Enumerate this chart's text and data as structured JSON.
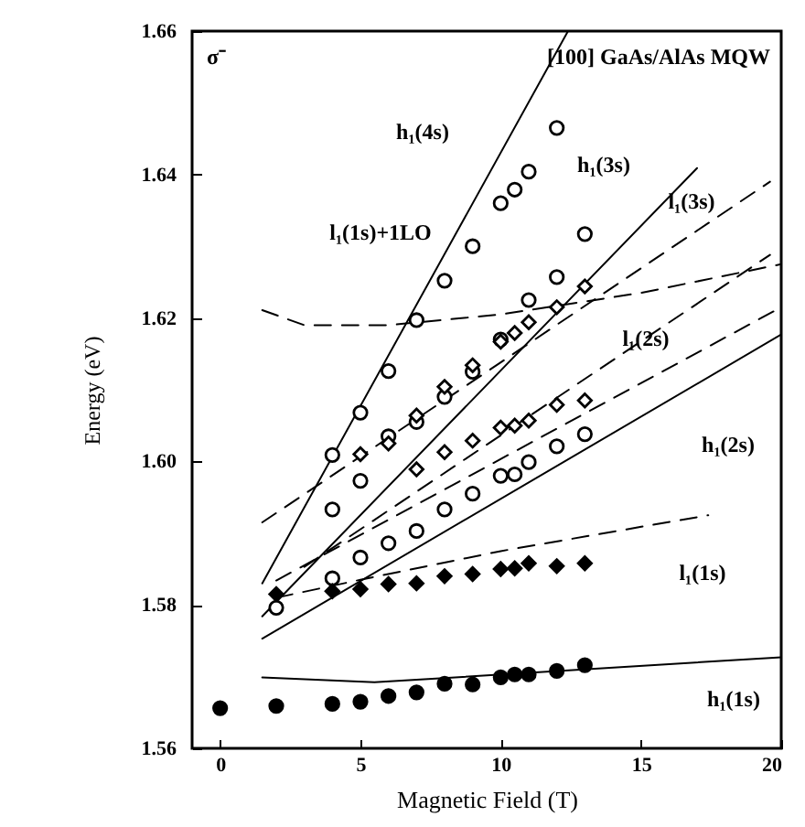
{
  "chart_data": {
    "type": "scatter",
    "xlabel": "Magnetic Field (T)",
    "ylabel": "Energy (eV)",
    "xlim": [
      -1,
      20
    ],
    "ylim": [
      1.56,
      1.66
    ],
    "xticks": [
      0,
      5,
      10,
      15,
      20
    ],
    "yticks": [
      1.56,
      1.58,
      {
        "value": 1.6,
        "label": "1.60"
      },
      1.62,
      1.64,
      1.66
    ],
    "series": [
      {
        "type": "line",
        "color": "#000000",
        "line_style": "solid",
        "x": [
          1.5,
          12.4
        ],
        "values": [
          1.583,
          1.66
        ]
      },
      {
        "type": "line",
        "color": "#000000",
        "line_style": "solid",
        "x": [
          1.5,
          17
        ],
        "values": [
          1.5784,
          1.6409
        ]
      },
      {
        "type": "line",
        "color": "#000000",
        "line_style": "solid",
        "x": [
          1.5,
          20
        ],
        "values": [
          1.5753,
          1.6177
        ]
      },
      {
        "type": "line",
        "color": "#000000",
        "line_style": "solid",
        "x": [
          1.5,
          5.5,
          20
        ],
        "values": [
          1.5699,
          1.5692,
          1.5727
        ]
      },
      {
        "type": "line",
        "color": "#000000",
        "line_style": "dashed",
        "x": [
          2,
          5,
          10,
          17.4
        ],
        "values": [
          1.581,
          1.5835,
          1.5875,
          1.5925
        ]
      },
      {
        "type": "line",
        "color": "#000000",
        "line_style": "dashed",
        "x": [
          2,
          20
        ],
        "values": [
          1.5834,
          1.6215
        ]
      },
      {
        "type": "line",
        "color": "#000000",
        "line_style": "dashed",
        "x": [
          3,
          19.6
        ],
        "values": [
          1.5853,
          1.6288
        ]
      },
      {
        "type": "line",
        "color": "#000000",
        "line_style": "dashed",
        "x": [
          1.5,
          19.6
        ],
        "values": [
          1.5915,
          1.639
        ]
      },
      {
        "type": "line",
        "color": "#000000",
        "line_style": "dashed",
        "x": [
          1.5,
          3,
          6,
          10,
          15,
          20
        ],
        "values": [
          1.6211,
          1.619,
          1.619,
          1.6205,
          1.6235,
          1.6275
        ]
      },
      {
        "color": "#ffffff",
        "marker": "circle",
        "x": [
          4,
          5,
          6,
          7,
          8,
          9,
          10,
          10.5,
          11,
          12
        ],
        "values": [
          1.6009,
          1.6068,
          1.6126,
          1.6197,
          1.6252,
          1.63,
          1.636,
          1.6379,
          1.6404,
          1.6465
        ]
      },
      {
        "color": "#ffffff",
        "marker": "circle",
        "x": [
          4,
          5,
          6,
          7,
          8,
          9,
          10,
          11,
          12,
          13
        ],
        "values": [
          1.5933,
          1.5973,
          1.6035,
          1.6055,
          1.609,
          1.6125,
          1.617,
          1.6225,
          1.6257,
          1.6317
        ]
      },
      {
        "color": "#ffffff",
        "marker": "diamond",
        "x": [
          5,
          6,
          7,
          8,
          9,
          10,
          10.5,
          11,
          12,
          13
        ],
        "values": [
          1.601,
          1.6025,
          1.6064,
          1.6104,
          1.6134,
          1.6167,
          1.6179,
          1.6194,
          1.6215,
          1.6244
        ]
      },
      {
        "color": "#ffffff",
        "marker": "diamond",
        "x": [
          7,
          8,
          9,
          10,
          10.5,
          11,
          12,
          13
        ],
        "values": [
          1.5989,
          1.6013,
          1.6029,
          1.6047,
          1.605,
          1.6057,
          1.6079,
          1.6085
        ]
      },
      {
        "color": "#ffffff",
        "marker": "circle",
        "x": [
          2,
          4,
          5,
          6,
          7,
          8,
          9,
          10,
          10.5,
          11,
          12,
          13
        ],
        "values": [
          1.5796,
          1.5837,
          1.5866,
          1.5886,
          1.5903,
          1.5933,
          1.5955,
          1.598,
          1.5982,
          1.5999,
          1.6021,
          1.6038
        ]
      },
      {
        "color": "#000000",
        "marker": "diamond",
        "x": [
          2,
          4,
          5,
          6,
          7,
          8,
          9,
          10,
          10.5,
          11,
          12,
          13
        ],
        "values": [
          1.5815,
          1.5819,
          1.5822,
          1.5829,
          1.583,
          1.584,
          1.5843,
          1.585,
          1.5851,
          1.5858,
          1.5854,
          1.5858
        ]
      },
      {
        "color": "#000000",
        "marker": "circle",
        "x": [
          0,
          2,
          4,
          5,
          6,
          7,
          8,
          9,
          10,
          10.5,
          11,
          12,
          13
        ],
        "values": [
          1.5656,
          1.5659,
          1.5662,
          1.5665,
          1.5673,
          1.5678,
          1.569,
          1.5689,
          1.5699,
          1.5703,
          1.5703,
          1.5708,
          1.5716
        ]
      }
    ],
    "annotations": [
      "σ⁻",
      "[100] GaAs/AlAs MQW",
      "h₁(4s)",
      "h₁(3s)",
      "l₁(3s)",
      "l₁(1s)+1LO",
      "l₁(2s)",
      "h₁(2s)",
      "l₁(1s)",
      "h₁(1s)"
    ]
  }
}
